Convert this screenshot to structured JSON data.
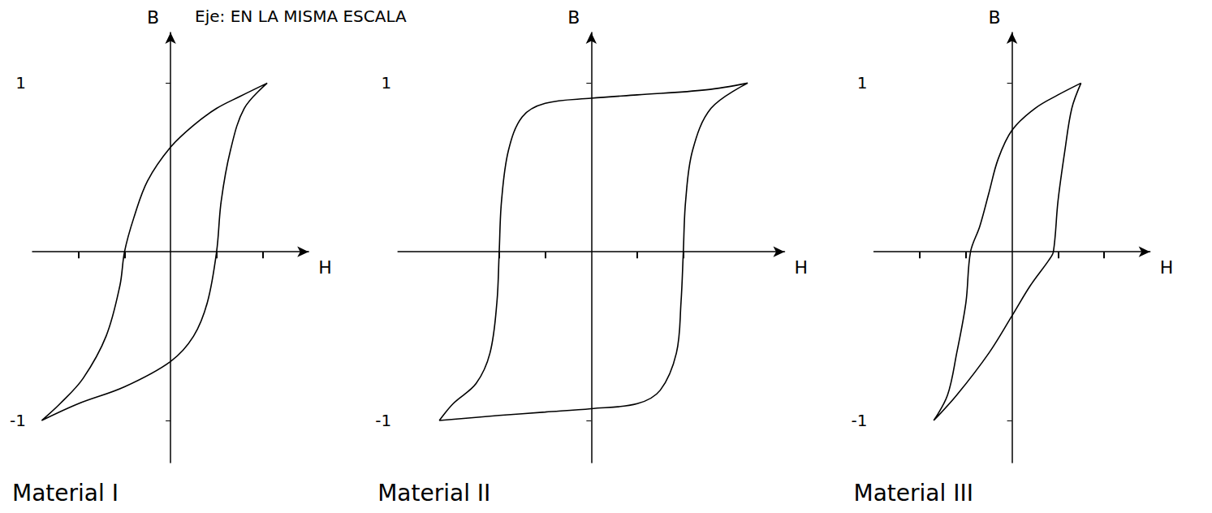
{
  "chart_data": [
    {
      "type": "line",
      "title": "Material I",
      "annotation": "Eje: EN LA MISMA ESCALA",
      "xlabel": "H",
      "ylabel": "B",
      "color": "#000000",
      "line_style": "solid",
      "grid": false,
      "tick_labels": "y",
      "xlim": [
        -3,
        3
      ],
      "xticks": [
        -2,
        -1,
        1,
        2
      ],
      "ylim": [
        -1.25,
        1.3
      ],
      "yticks": [
        -1,
        1
      ],
      "x": [
        2.1,
        1.5,
        1,
        0.5,
        0,
        -0.5,
        -0.8,
        -1,
        -1.1,
        -1.4,
        -1.9,
        -2.4,
        -2.8,
        -2,
        -1,
        0,
        0.5,
        0.8,
        1,
        1.1,
        1.3,
        1.6,
        2.1
      ],
      "values": [
        1,
        0.92,
        0.85,
        0.75,
        0.62,
        0.42,
        0.2,
        0,
        -0.2,
        -0.5,
        -0.75,
        -0.9,
        -1,
        -0.9,
        -0.8,
        -0.65,
        -0.5,
        -0.3,
        0,
        0.3,
        0.6,
        0.85,
        1
      ]
    },
    {
      "type": "line",
      "title": "Material II",
      "xlabel": "H",
      "ylabel": "B",
      "color": "#000000",
      "line_style": "solid",
      "grid": false,
      "tick_labels": "y",
      "xlim": [
        -4.2,
        4.2
      ],
      "xticks": [
        -2,
        -1,
        1,
        2
      ],
      "ylim": [
        -1.25,
        1.3
      ],
      "yticks": [
        -1,
        1
      ],
      "x": [
        3.4,
        2.5,
        1,
        0,
        -1,
        -1.5,
        -1.8,
        -1.95,
        -2,
        -2.05,
        -2.2,
        -2.5,
        -3,
        -3.3,
        -2,
        -1,
        0,
        1,
        1.5,
        1.85,
        1.95,
        2,
        2.05,
        2.2,
        2.6,
        3.4
      ],
      "values": [
        1,
        0.96,
        0.93,
        0.91,
        0.88,
        0.8,
        0.6,
        0.3,
        0,
        -0.3,
        -0.6,
        -0.78,
        -0.9,
        -1,
        -0.97,
        -0.95,
        -0.93,
        -0.9,
        -0.82,
        -0.6,
        -0.3,
        0,
        0.3,
        0.6,
        0.85,
        1
      ]
    },
    {
      "type": "line",
      "title": "Material III",
      "xlabel": "H",
      "ylabel": "B",
      "color": "#000000",
      "line_style": "solid",
      "grid": false,
      "tick_labels": "y",
      "xlim": [
        -3,
        3
      ],
      "xticks": [
        -2,
        -1,
        1,
        2
      ],
      "ylim": [
        -1.25,
        1.3
      ],
      "yticks": [
        -1,
        1
      ],
      "x": [
        1.5,
        1,
        0.5,
        0,
        -0.3,
        -0.5,
        -0.7,
        -0.9,
        -1,
        -1.2,
        -1.4,
        -1.7,
        -1.2,
        -0.5,
        0,
        0.4,
        0.8,
        0.9,
        1,
        1.15,
        1.3,
        1.5
      ],
      "values": [
        1,
        0.93,
        0.85,
        0.72,
        0.55,
        0.35,
        0.15,
        0,
        -0.3,
        -0.6,
        -0.85,
        -1,
        -0.85,
        -0.6,
        -0.38,
        -0.2,
        -0.05,
        0,
        0.3,
        0.6,
        0.85,
        1
      ]
    }
  ]
}
